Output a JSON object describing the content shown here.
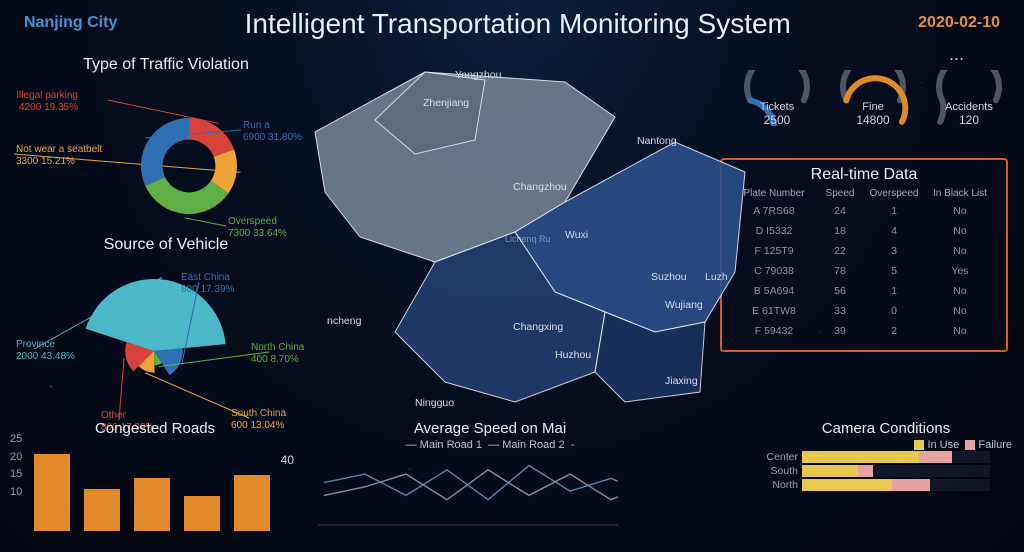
{
  "header": {
    "city": "Nanjing City",
    "title": "Intelligent Transportation Monitoring System",
    "date": "2020-02-10",
    "more_glyph": "..."
  },
  "colors": {
    "accent_blue": "#4b8fd6",
    "accent_orange": "#e58f3a",
    "text": "#b8c4d6",
    "panel_border": "#e2552d",
    "series_blue": "#2f6fb4",
    "series_green": "#5fae44",
    "series_orange": "#eda435",
    "series_red": "#d8423a",
    "series_cyan": "#4bb7c8",
    "bar_orange": "#e08a2a",
    "cam_inuse": "#e7c94f",
    "cam_fail": "#e6a2a2",
    "gauge_track": "#4e5666"
  },
  "violation": {
    "title": "Type of Traffic Violation",
    "slices": [
      {
        "name": "Illegal parking",
        "value": 4200,
        "pct": 19.35,
        "color": "#d8423a"
      },
      {
        "name": "Not wear a seatbelt",
        "value": 3300,
        "pct": 15.21,
        "color": "#eda435"
      },
      {
        "name": "Overspeed",
        "value": 7300,
        "pct": 33.64,
        "color": "#5fae44"
      },
      {
        "name": "Run a",
        "value": 6900,
        "pct": 31.8,
        "color": "#2f6fb4"
      }
    ],
    "inner_ratio": 0.55
  },
  "source": {
    "title": "Source of Vehicle",
    "slices": [
      {
        "name": "Province",
        "value": 2000,
        "pct": 43.48,
        "color": "#4bb7c8"
      },
      {
        "name": "East China",
        "value": 800,
        "pct": 17.39,
        "color": "#2f6fb4"
      },
      {
        "name": "North China",
        "value": 400,
        "pct": 8.7,
        "color": "#5fae44"
      },
      {
        "name": "South China",
        "value": 600,
        "pct": 13.04,
        "color": "#eda435"
      },
      {
        "name": "Other",
        "value": 800,
        "pct": 17.39,
        "color": "#d8423a"
      }
    ]
  },
  "map": {
    "cities": [
      "Yangzhou",
      "Zhenjiang",
      "Nantong",
      "Changzhou",
      "Wuxi",
      "Suzhou",
      "Luzh",
      "Wujiang",
      "Changxing",
      "Huzhou",
      "Jiaxing",
      "ncheng",
      "Ningguo"
    ],
    "fill_near": "#6f7f92",
    "fill_far": "#2c4e89",
    "stroke": "#e6ecf5"
  },
  "gauges": [
    {
      "label": "Tickets",
      "value": 2500,
      "pct": 0.45,
      "color": "#2f6fb4"
    },
    {
      "label": "Fine",
      "value": 14800,
      "pct": 0.82,
      "color": "#e08a2a"
    },
    {
      "label": "Accidents",
      "value": 120,
      "pct": 0.18,
      "color": "#4e5666"
    }
  ],
  "realtime": {
    "title": "Real-time Data",
    "columns": [
      "Plate Number",
      "Speed",
      "Overspeed",
      "In Black List"
    ],
    "rows": [
      [
        "A 7RS68",
        24,
        1,
        "No"
      ],
      [
        "D I5332",
        18,
        4,
        "No"
      ],
      [
        "F 125T9",
        22,
        3,
        "No"
      ],
      [
        "C 79038",
        78,
        5,
        "Yes"
      ],
      [
        "B 5A694",
        56,
        1,
        "No"
      ],
      [
        "E 61TW8",
        33,
        0,
        "No"
      ],
      [
        "F 59432",
        39,
        2,
        "No"
      ]
    ]
  },
  "congested": {
    "title": "Congested Roads",
    "ylim": [
      0,
      25
    ],
    "yticks": [
      25,
      20,
      15,
      10
    ],
    "bars": [
      22,
      12,
      15,
      10,
      16
    ],
    "color": "#e08a2a",
    "marker_value": 40
  },
  "avgspeed": {
    "title": "Average Speed on Mai",
    "legend": [
      "Main Road 1",
      "Main Road 2"
    ],
    "colors": [
      "#6790b8",
      "#8aa2b3"
    ],
    "series1": [
      18,
      22,
      12,
      24,
      10,
      26,
      14,
      20,
      12
    ],
    "series2": [
      12,
      16,
      22,
      10,
      24,
      12,
      22,
      10,
      18
    ],
    "ymin": 0,
    "ymax": 30
  },
  "camera": {
    "title": "Camera Conditions",
    "legend": [
      "In Use",
      "Failure"
    ],
    "colors": [
      "#e7c94f",
      "#e6a2a2"
    ],
    "max": 100,
    "rows": [
      {
        "label": "Center",
        "inuse": 62,
        "fail": 18
      },
      {
        "label": "South",
        "inuse": 30,
        "fail": 8
      },
      {
        "label": "North",
        "inuse": 48,
        "fail": 20
      }
    ]
  }
}
